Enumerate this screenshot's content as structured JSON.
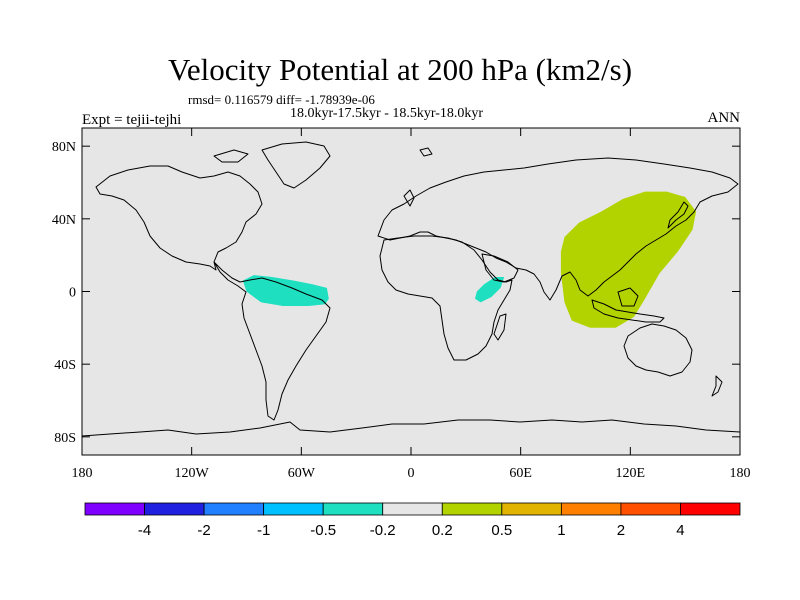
{
  "title": "Velocity Potential at 200 hPa (km2/s)",
  "stats_line": "rmsd= 0.116579 diff= -1.78939e-06",
  "period_line": "18.0kyr-17.5kyr - 18.5kyr-18.0kyr",
  "left_label": "Expt = tejii-tejhi",
  "right_label": "ANN",
  "map": {
    "projection": "cylindrical equidistant",
    "lon_range": [
      -180,
      180
    ],
    "lat_range": [
      -90,
      90
    ],
    "ocean_fill": "#e6e6e6",
    "lat_ticks": [
      {
        "value": 80,
        "label": "80N"
      },
      {
        "value": 40,
        "label": "40N"
      },
      {
        "value": 0,
        "label": "0"
      },
      {
        "value": -40,
        "label": "40S"
      },
      {
        "value": -80,
        "label": "80S"
      }
    ],
    "lon_ticks": [
      {
        "value": -180,
        "label": "180"
      },
      {
        "value": -120,
        "label": "120W"
      },
      {
        "value": -60,
        "label": "60W"
      },
      {
        "value": 0,
        "label": "0"
      },
      {
        "value": 60,
        "label": "60E"
      },
      {
        "value": 120,
        "label": "120E"
      },
      {
        "value": 180,
        "label": "180"
      }
    ],
    "shaded_regions": [
      {
        "name": "pacific-warm-pool",
        "interval": "0.2 to 0.5",
        "color": "#b3d300",
        "outline_lonlat": [
          [
            84,
            30
          ],
          [
            92,
            38
          ],
          [
            104,
            44
          ],
          [
            116,
            51
          ],
          [
            128,
            55
          ],
          [
            140,
            55
          ],
          [
            150,
            52
          ],
          [
            156,
            44
          ],
          [
            154,
            34
          ],
          [
            146,
            22
          ],
          [
            136,
            10
          ],
          [
            128,
            -4
          ],
          [
            122,
            -14
          ],
          [
            112,
            -20
          ],
          [
            98,
            -20
          ],
          [
            88,
            -16
          ],
          [
            84,
            -6
          ],
          [
            82,
            10
          ],
          [
            82,
            22
          ]
        ]
      },
      {
        "name": "amazon",
        "interval": "-0.5 to -0.2",
        "color": "#1ee0c0",
        "outline_lonlat": [
          [
            -92,
            6
          ],
          [
            -86,
            9
          ],
          [
            -76,
            8
          ],
          [
            -64,
            6
          ],
          [
            -54,
            4
          ],
          [
            -46,
            2
          ],
          [
            -45,
            -4
          ],
          [
            -47,
            -7
          ],
          [
            -56,
            -8
          ],
          [
            -70,
            -8
          ],
          [
            -82,
            -6
          ],
          [
            -90,
            0
          ]
        ]
      },
      {
        "name": "east-africa",
        "interval": "-0.5 to -0.2",
        "color": "#1ee0c0",
        "outline_lonlat": [
          [
            36,
            0
          ],
          [
            40,
            4
          ],
          [
            46,
            8
          ],
          [
            51,
            8
          ],
          [
            49,
            2
          ],
          [
            44,
            -3
          ],
          [
            38,
            -6
          ],
          [
            35,
            -4
          ]
        ]
      }
    ]
  },
  "colorbar": {
    "colors": [
      "#8000ff",
      "#2020e0",
      "#2080ff",
      "#00c0ff",
      "#1ee0c0",
      "#e6e6e6",
      "#b3d300",
      "#e0b400",
      "#ff8000",
      "#ff5000",
      "#ff0000"
    ],
    "labels": [
      "-4",
      "-2",
      "-1",
      "-0.5",
      "-0.2",
      "0.2",
      "0.5",
      "1",
      "2",
      "4"
    ]
  }
}
